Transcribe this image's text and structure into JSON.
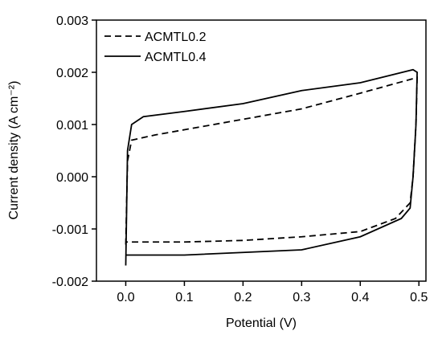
{
  "chart_data": {
    "type": "line",
    "xlabel": "Potential (V)",
    "ylabel": "Current density (A cm⁻²)",
    "xlim": [
      -0.05,
      0.512
    ],
    "ylim": [
      -0.002,
      0.003
    ],
    "xticks": [
      {
        "value": 0,
        "label": "0.0"
      },
      0.1,
      0.2,
      0.3,
      0.4,
      0.5
    ],
    "yticks": [
      -0.002,
      -0.001,
      {
        "value": 0,
        "label": "0.000"
      },
      0.001,
      0.002,
      0.003
    ],
    "legend": "upper left",
    "series": [
      {
        "name": "ACMTL0.2",
        "color": "#000000",
        "line_style": "dashed",
        "x": [
          0.0,
          0.003,
          0.01,
          0.05,
          0.1,
          0.2,
          0.3,
          0.4,
          0.497,
          0.495,
          0.49,
          0.485,
          0.46,
          0.4,
          0.3,
          0.2,
          0.1,
          0.0
        ],
        "values": [
          -0.0013,
          0.0003,
          0.0007,
          0.0008,
          0.0009,
          0.0011,
          0.0013,
          0.0016,
          0.0019,
          0.001,
          0.0,
          -0.0005,
          -0.0008,
          -0.00105,
          -0.00115,
          -0.00122,
          -0.00125,
          -0.00125
        ]
      },
      {
        "name": "ACMTL0.4",
        "color": "#000000",
        "line_style": "solid",
        "x": [
          0.0,
          0.003,
          0.01,
          0.03,
          0.1,
          0.2,
          0.3,
          0.4,
          0.49,
          0.497,
          0.495,
          0.49,
          0.485,
          0.47,
          0.4,
          0.3,
          0.2,
          0.1,
          0.01,
          0.0
        ],
        "values": [
          -0.0017,
          0.0005,
          0.001,
          0.00115,
          0.00125,
          0.0014,
          0.00165,
          0.0018,
          0.00205,
          0.002,
          0.001,
          0.0,
          -0.0006,
          -0.0008,
          -0.00115,
          -0.0014,
          -0.00145,
          -0.0015,
          -0.0015,
          -0.0015
        ]
      }
    ]
  }
}
